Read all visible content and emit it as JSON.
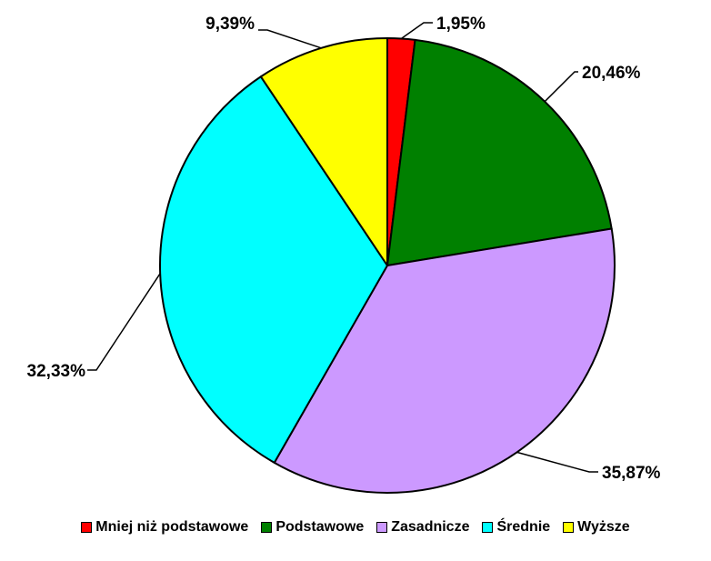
{
  "chart_data": {
    "type": "pie",
    "categories": [
      "Mniej niż podstawowe",
      "Podstawowe",
      "Zasadnicze",
      "Średnie",
      "Wyższe"
    ],
    "values": [
      1.95,
      20.46,
      35.87,
      32.33,
      9.39
    ],
    "value_labels": [
      "1,95%",
      "20,46%",
      "35,87%",
      "32,33%",
      "9,39%"
    ],
    "colors": [
      "#ff0000",
      "#008000",
      "#cc99ff",
      "#00ffff",
      "#ffff00"
    ],
    "start": "12 o'clock",
    "direction": "clockwise",
    "legend_position": "bottom"
  }
}
